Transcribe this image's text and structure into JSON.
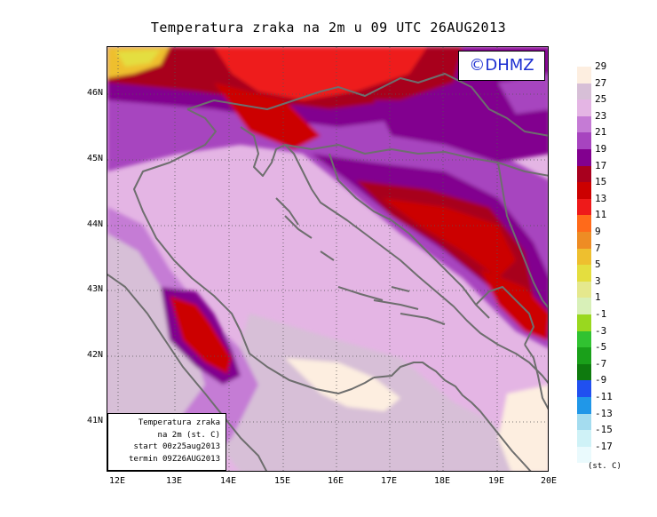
{
  "title": "Temperatura zraka na 2m u 09 UTC 26AUG2013",
  "logo_text": "©DHMZ",
  "info": {
    "line1": "Temperatura zraka",
    "line2": "na 2m (st. C)",
    "line3": "start 00z25aug2013",
    "line4": "termin 09Z26AUG2013"
  },
  "axes": {
    "lat_labels": [
      "46N",
      "45N",
      "44N",
      "43N",
      "42N",
      "41N"
    ],
    "lon_labels": [
      "12E",
      "13E",
      "14E",
      "15E",
      "16E",
      "17E",
      "18E",
      "19E",
      "20E"
    ]
  },
  "legend": {
    "labels": [
      "29",
      "27",
      "25",
      "23",
      "21",
      "19",
      "17",
      "15",
      "13",
      "11",
      "9",
      "7",
      "5",
      "3",
      "1",
      "-1",
      "-3",
      "-5",
      "-7",
      "-9",
      "-11",
      "-13",
      "-15",
      "-17"
    ],
    "unit": "(st. C)",
    "colors": [
      "#fdeee0",
      "#d7bfd7",
      "#e4b5e4",
      "#c57bd5",
      "#a744bf",
      "#82008f",
      "#a8001e",
      "#cc0000",
      "#ee1a1a",
      "#ff6a1a",
      "#ee8c24",
      "#eebf2f",
      "#e4de3f",
      "#e5e88d",
      "#d8f0b8",
      "#99d81f",
      "#31c231",
      "#1aa01a",
      "#0e7a0e",
      "#2050f0",
      "#2097e8",
      "#a4dcef",
      "#cff2f7",
      "#eafafd"
    ]
  }
}
